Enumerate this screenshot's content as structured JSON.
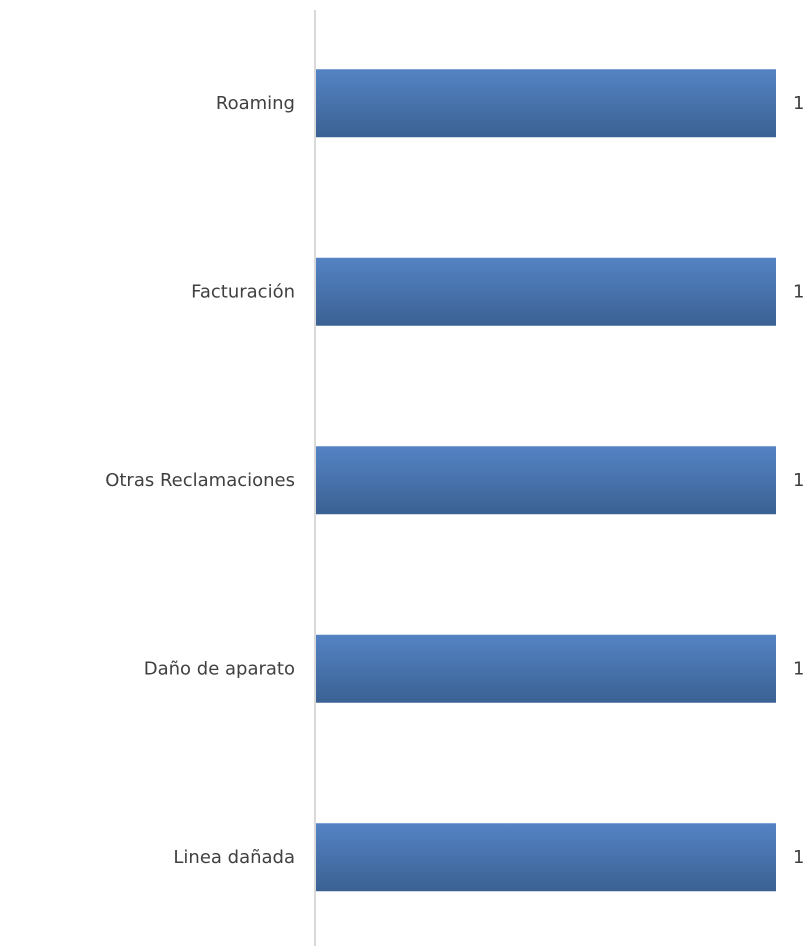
{
  "chart_data": {
    "type": "bar",
    "orientation": "horizontal",
    "categories": [
      "Roaming",
      "Facturación",
      "Otras Reclamaciones",
      "Daño de aparato",
      "Linea dañada"
    ],
    "values": [
      1,
      1,
      1,
      1,
      1
    ],
    "value_labels": [
      "1",
      "1",
      "1",
      "1",
      "1"
    ],
    "xlim": [
      0,
      1
    ],
    "grid": false,
    "legend": "none",
    "bar_color": "#4a74b0",
    "bar_color_light": "#5483c4",
    "bar_color_dark": "#3b6193",
    "axis_color": "#d9d9d9",
    "text_color": "#404040"
  }
}
